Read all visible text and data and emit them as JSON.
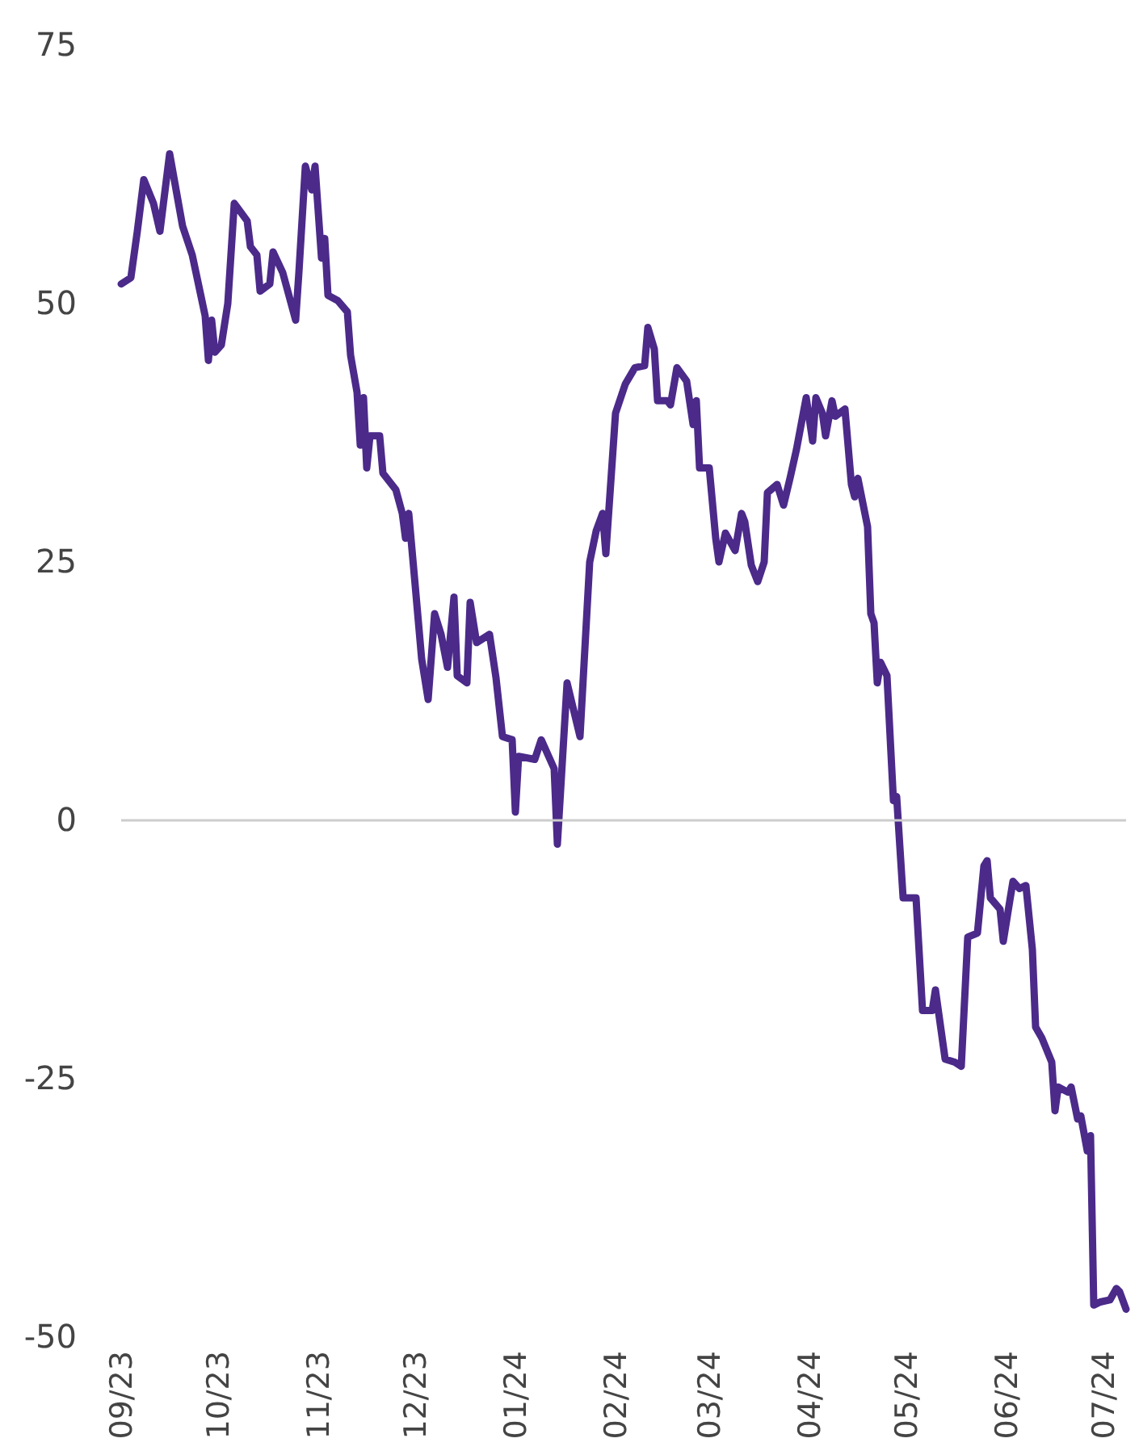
{
  "chart_data": {
    "type": "line",
    "x": [
      "2023-09-01",
      "2023-09-04",
      "2023-09-06",
      "2023-09-08",
      "2023-09-11",
      "2023-09-13",
      "2023-09-16",
      "2023-09-20",
      "2023-09-23",
      "2023-09-27",
      "2023-09-28",
      "2023-09-29",
      "2023-09-30",
      "2023-10-02",
      "2023-10-04",
      "2023-10-06",
      "2023-10-10",
      "2023-10-11",
      "2023-10-13",
      "2023-10-14",
      "2023-10-17",
      "2023-10-18",
      "2023-10-21",
      "2023-10-25",
      "2023-10-26",
      "2023-10-28",
      "2023-10-30",
      "2023-10-31",
      "2023-11-02",
      "2023-11-03",
      "2023-11-04",
      "2023-11-07",
      "2023-11-10",
      "2023-11-11",
      "2023-11-13",
      "2023-11-14",
      "2023-11-15",
      "2023-11-16",
      "2023-11-17",
      "2023-11-20",
      "2023-11-21",
      "2023-11-25",
      "2023-11-27",
      "2023-11-28",
      "2023-11-29",
      "2023-12-01",
      "2023-12-03",
      "2023-12-05",
      "2023-12-07",
      "2023-12-09",
      "2023-12-11",
      "2023-12-13",
      "2023-12-14",
      "2023-12-17",
      "2023-12-18",
      "2023-12-20",
      "2023-12-24",
      "2023-12-26",
      "2023-12-28",
      "2023-12-31",
      "2024-01-01",
      "2024-01-02",
      "2024-01-07",
      "2024-01-09",
      "2024-01-13",
      "2024-01-14",
      "2024-01-17",
      "2024-01-21",
      "2024-01-24",
      "2024-01-26",
      "2024-01-28",
      "2024-01-29",
      "2024-02-01",
      "2024-02-04",
      "2024-02-07",
      "2024-02-10",
      "2024-02-11",
      "2024-02-13",
      "2024-02-14",
      "2024-02-17",
      "2024-02-18",
      "2024-02-20",
      "2024-02-23",
      "2024-02-25",
      "2024-02-26",
      "2024-02-27",
      "2024-03-01",
      "2024-03-03",
      "2024-03-04",
      "2024-03-06",
      "2024-03-09",
      "2024-03-11",
      "2024-03-12",
      "2024-03-14",
      "2024-03-16",
      "2024-03-18",
      "2024-03-19",
      "2024-03-22",
      "2024-03-24",
      "2024-03-26",
      "2024-03-28",
      "2024-03-31",
      "2024-04-02",
      "2024-04-03",
      "2024-04-05",
      "2024-04-06",
      "2024-04-08",
      "2024-04-09",
      "2024-04-12",
      "2024-04-14",
      "2024-04-15",
      "2024-04-16",
      "2024-04-19",
      "2024-04-20",
      "2024-04-21",
      "2024-04-22",
      "2024-04-23",
      "2024-04-25",
      "2024-04-27",
      "2024-04-28",
      "2024-04-30",
      "2024-05-04",
      "2024-05-06",
      "2024-05-09",
      "2024-05-10",
      "2024-05-13",
      "2024-05-16",
      "2024-05-18",
      "2024-05-20",
      "2024-05-23",
      "2024-05-25",
      "2024-05-26",
      "2024-05-27",
      "2024-05-30",
      "2024-05-31",
      "2024-06-02",
      "2024-06-03",
      "2024-06-05",
      "2024-06-07",
      "2024-06-09",
      "2024-06-10",
      "2024-06-12",
      "2024-06-15",
      "2024-06-16",
      "2024-06-17",
      "2024-06-20",
      "2024-06-21",
      "2024-06-23",
      "2024-06-24",
      "2024-06-26",
      "2024-06-27",
      "2024-06-28",
      "2024-06-30",
      "2024-07-03",
      "2024-07-05",
      "2024-07-06",
      "2024-07-08"
    ],
    "series": [
      {
        "color": "#4b2a8a",
        "values": [
          51.9,
          52.5,
          57,
          62,
          59.7,
          57,
          64.5,
          57.5,
          54.7,
          48.8,
          44.5,
          48.4,
          45.3,
          46,
          50,
          59.7,
          58,
          55.5,
          54.7,
          51.2,
          51.9,
          55,
          53,
          48.4,
          53,
          63.3,
          61,
          63.3,
          54.4,
          56.3,
          50.8,
          50.3,
          49.2,
          45,
          41.4,
          36.3,
          40.9,
          34.1,
          37.2,
          37.2,
          33.6,
          32,
          29.7,
          27.3,
          29.7,
          22.7,
          15.6,
          11.7,
          20,
          18,
          14.8,
          21.6,
          14,
          13.3,
          21.1,
          17.2,
          18,
          13.8,
          8.1,
          7.8,
          0.8,
          6.2,
          5.9,
          7.8,
          5,
          -2.3,
          13.3,
          8.1,
          25,
          28,
          29.7,
          25.8,
          39.4,
          42.2,
          43.8,
          44,
          47.7,
          45.6,
          40.6,
          40.6,
          40.2,
          43.8,
          42.5,
          38.3,
          40.6,
          34.1,
          34.1,
          27.3,
          25,
          27.8,
          26.1,
          29.7,
          28.9,
          24.7,
          23.1,
          25,
          31.7,
          32.5,
          30.5,
          33.1,
          35.9,
          40.9,
          36.7,
          40.9,
          39.4,
          37.2,
          40.6,
          39.1,
          39.8,
          32.5,
          31.3,
          33.1,
          28.4,
          20,
          19.1,
          13.3,
          15.3,
          14,
          1.9,
          2.3,
          -7.5,
          -7.5,
          -18.4,
          -18.4,
          -16.4,
          -23.1,
          -23.4,
          -23.8,
          -11.3,
          -10.9,
          -4.4,
          -3.9,
          -7.5,
          -8.6,
          -11.7,
          -7.8,
          -5.9,
          -6.6,
          -6.3,
          -12.5,
          -20,
          -21.1,
          -23.4,
          -28.1,
          -25.8,
          -26.3,
          -25.8,
          -28.9,
          -28.6,
          -32,
          -30.5,
          -46.9,
          -46.6,
          -46.4,
          -45.3,
          -45.6,
          -47.3
        ]
      }
    ],
    "xlim": [
      "2023-09-01",
      "2024-07-08"
    ],
    "xticks": [
      {
        "value": "2023-09",
        "label": "09/23"
      },
      {
        "value": "2023-10",
        "label": "10/23"
      },
      {
        "value": "2023-11",
        "label": "11/23"
      },
      {
        "value": "2023-12",
        "label": "12/23"
      },
      {
        "value": "2024-01",
        "label": "01/24"
      },
      {
        "value": "2024-02",
        "label": "02/24"
      },
      {
        "value": "2024-03",
        "label": "03/24"
      },
      {
        "value": "2024-04",
        "label": "04/24"
      },
      {
        "value": "2024-05",
        "label": "05/24"
      },
      {
        "value": "2024-06",
        "label": "06/24"
      },
      {
        "value": "2024-07",
        "label": "07/24"
      }
    ],
    "ylim": [
      -50,
      75
    ],
    "yticks": [
      -50,
      -25,
      0,
      25,
      50,
      75
    ],
    "ref_lines": [
      {
        "axis": "y",
        "value": 0,
        "color": "#cccccc"
      }
    ],
    "grid": false,
    "marker": "none",
    "line_style": "solid"
  }
}
